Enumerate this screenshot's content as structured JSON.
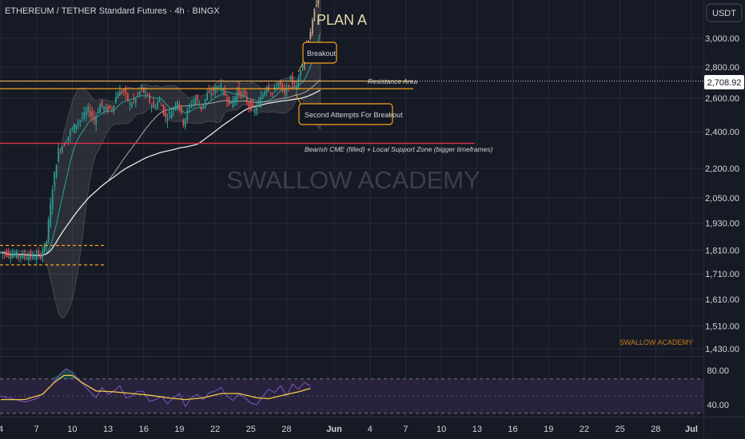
{
  "colors": {
    "background": "#161a25",
    "panel": "#131722",
    "grid": "#262b38",
    "text": "#d1d4dc",
    "up": "#26a69a",
    "down": "#ef5350",
    "highlighted_candle": "#c9b08b",
    "orange": "#f7a21b",
    "red_line": "#e0304a",
    "ema": "#26a69a",
    "sma_white": "#e6e6e6",
    "sma_grey": "#a8a8a8",
    "rsi_line": "#7e57c2",
    "rsi_ma": "#f7c948",
    "rsi_band": "#2a2540",
    "watermark": "#3a3f4c",
    "branding": "#c67b1e"
  },
  "header": {
    "title": "ETHEREUM / TETHER Standard Futures · 4h · BINGX"
  },
  "currency_button": "USDT",
  "current_price": "2,708.92",
  "watermark": "SWALLOW ACADEMY",
  "branding": "SWALLOW ACADEMY",
  "annotations": {
    "plan": "PLAN A",
    "breakout": "Breakout",
    "second_attempts": "Second Attempts For Breakout",
    "resistance": "Resistance Area",
    "bearish_cme": "Bearish CME (filled) + Local Support Zone (bigger timeframes)"
  },
  "chart_data": [
    {
      "type": "candlestick",
      "title": "ETHEREUM / TETHER Standard Futures · 4h · BINGX",
      "y_axis": {
        "ticks": [
          "3,000.00",
          "2,800.00",
          "2,600.00",
          "2,400.00",
          "2,200.00",
          "2,050.00",
          "1,930.00",
          "1,810.00",
          "1,710.00",
          "1,610.00",
          "1,510.00",
          "1,430.00"
        ],
        "tick_values": [
          3000,
          2800,
          2600,
          2400,
          2200,
          2050,
          1930,
          1810,
          1710,
          1610,
          1510,
          1430
        ],
        "scale": "log"
      },
      "x_axis": {
        "ticks": [
          "4",
          "7",
          "10",
          "13",
          "16",
          "19",
          "22",
          "25",
          "28",
          "Jun",
          "4",
          "7",
          "10",
          "13",
          "16",
          "19",
          "22",
          "25",
          "28",
          "Jul"
        ],
        "tick_days": [
          4,
          7,
          10,
          13,
          16,
          19,
          22,
          25,
          28,
          32,
          35,
          38,
          41,
          44,
          47,
          50,
          53,
          56,
          59,
          62
        ]
      },
      "current_price": 2708.92,
      "levels": {
        "resistance_top": 2708.92,
        "resistance_bottom": 2660,
        "bearish_cme_support": 2335,
        "consolidation_top": 1830,
        "consolidation_bottom": 1747
      },
      "price_path_day_close": [
        [
          4,
          1800
        ],
        [
          5.5,
          1790
        ],
        [
          7,
          1780
        ],
        [
          7.5,
          1790
        ],
        [
          8,
          1850
        ],
        [
          8.5,
          2100
        ],
        [
          9,
          2300
        ],
        [
          9.5,
          2330
        ],
        [
          10,
          2400
        ],
        [
          10.5,
          2450
        ],
        [
          11,
          2480
        ],
        [
          11.5,
          2530
        ],
        [
          12,
          2470
        ],
        [
          12.5,
          2560
        ],
        [
          13,
          2530
        ],
        [
          13.5,
          2540
        ],
        [
          14,
          2640
        ],
        [
          14.5,
          2640
        ],
        [
          15,
          2560
        ],
        [
          15.5,
          2600
        ],
        [
          16,
          2660
        ],
        [
          16.5,
          2600
        ],
        [
          17,
          2540
        ],
        [
          17.5,
          2590
        ],
        [
          18,
          2480
        ],
        [
          18.5,
          2520
        ],
        [
          19,
          2590
        ],
        [
          19.5,
          2450
        ],
        [
          20,
          2550
        ],
        [
          20.5,
          2600
        ],
        [
          21,
          2540
        ],
        [
          21.5,
          2620
        ],
        [
          22,
          2650
        ],
        [
          22.5,
          2680
        ],
        [
          23,
          2620
        ],
        [
          23.5,
          2560
        ],
        [
          24,
          2640
        ],
        [
          24.5,
          2620
        ],
        [
          25,
          2560
        ],
        [
          25.5,
          2520
        ],
        [
          26,
          2600
        ],
        [
          26.5,
          2680
        ],
        [
          27,
          2630
        ],
        [
          27.5,
          2700
        ],
        [
          28,
          2620
        ],
        [
          28.5,
          2720
        ],
        [
          29,
          2660
        ],
        [
          29.3,
          2780
        ],
        [
          29.6,
          2880
        ],
        [
          30,
          3000
        ],
        [
          30.3,
          3100
        ],
        [
          30.6,
          3250
        ],
        [
          31,
          3350
        ]
      ]
    },
    {
      "type": "line",
      "title": "RSI",
      "y_axis": {
        "ticks": [
          "80.00",
          "40.00"
        ],
        "tick_values": [
          80,
          40
        ]
      },
      "band": [
        70,
        30
      ],
      "midline": 50,
      "series": [
        {
          "name": "",
          "values": [
            [
              4,
              50
            ],
            [
              5,
              47
            ],
            [
              6,
              43
            ],
            [
              7,
              47
            ],
            [
              7.7,
              55
            ],
            [
              8.2,
              62
            ],
            [
              9,
              76
            ],
            [
              9.5,
              82
            ],
            [
              10,
              78
            ],
            [
              10.5,
              70
            ],
            [
              11,
              62
            ],
            [
              11.5,
              55
            ],
            [
              12,
              48
            ],
            [
              12.5,
              60
            ],
            [
              13,
              52
            ],
            [
              13.5,
              56
            ],
            [
              14,
              62
            ],
            [
              14.5,
              48
            ],
            [
              15,
              50
            ],
            [
              15.5,
              56
            ],
            [
              16,
              55
            ],
            [
              16.5,
              44
            ],
            [
              17,
              46
            ],
            [
              17.5,
              50
            ],
            [
              18,
              41
            ],
            [
              18.5,
              48
            ],
            [
              19,
              53
            ],
            [
              19.5,
              38
            ],
            [
              20,
              48
            ],
            [
              20.5,
              52
            ],
            [
              21,
              46
            ],
            [
              21.5,
              54
            ],
            [
              22,
              56
            ],
            [
              22.5,
              60
            ],
            [
              23,
              50
            ],
            [
              23.5,
              45
            ],
            [
              24,
              52
            ],
            [
              24.5,
              48
            ],
            [
              25,
              42
            ],
            [
              25.5,
              40
            ],
            [
              26,
              50
            ],
            [
              26.5,
              58
            ],
            [
              27,
              54
            ],
            [
              27.5,
              62
            ],
            [
              28,
              50
            ],
            [
              28.5,
              64
            ],
            [
              29,
              58
            ],
            [
              29.5,
              66
            ],
            [
              30,
              62
            ]
          ]
        },
        {
          "name": "",
          "values": [
            [
              4,
              46
            ],
            [
              6,
              46
            ],
            [
              7.5,
              52
            ],
            [
              8.5,
              66
            ],
            [
              9.3,
              74
            ],
            [
              10,
              74
            ],
            [
              10.8,
              66
            ],
            [
              12,
              56
            ],
            [
              13.5,
              55
            ],
            [
              15,
              53
            ],
            [
              16.5,
              51
            ],
            [
              18,
              48
            ],
            [
              19.5,
              46
            ],
            [
              21,
              48
            ],
            [
              22.5,
              53
            ],
            [
              24,
              53
            ],
            [
              25.5,
              48
            ],
            [
              26.5,
              47
            ],
            [
              28,
              52
            ],
            [
              29,
              55
            ],
            [
              30,
              59
            ]
          ]
        }
      ]
    }
  ]
}
